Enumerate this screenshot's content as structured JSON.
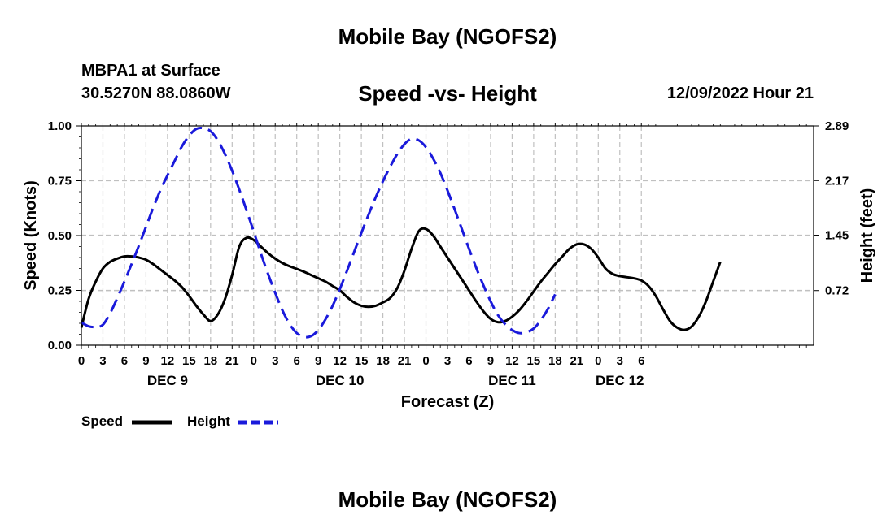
{
  "header": {
    "title": "Mobile Bay (NGOFS2)",
    "station": "MBPA1 at Surface",
    "coordinates": "30.5270N  88.0860W",
    "subtitle": "Speed -vs- Height",
    "date": "12/09/2022 Hour 21"
  },
  "footer": {
    "title": "Mobile Bay (NGOFS2)"
  },
  "chart_data": {
    "type": "line",
    "xlabel": "Forecast (Z)",
    "ylabel": "Speed (Knots)",
    "y2label": "Height (feet)",
    "x_range_hours": [
      0,
      102
    ],
    "ylim": [
      0,
      1.0
    ],
    "y2lim": [
      0,
      2.89
    ],
    "grid": true,
    "x_ticks": [
      {
        "h": 0,
        "label": "0"
      },
      {
        "h": 3,
        "label": "3"
      },
      {
        "h": 6,
        "label": "6"
      },
      {
        "h": 9,
        "label": "9"
      },
      {
        "h": 12,
        "label": "12"
      },
      {
        "h": 15,
        "label": "15"
      },
      {
        "h": 18,
        "label": "18"
      },
      {
        "h": 21,
        "label": "21"
      },
      {
        "h": 24,
        "label": "0"
      },
      {
        "h": 27,
        "label": "3"
      },
      {
        "h": 30,
        "label": "6"
      },
      {
        "h": 33,
        "label": "9"
      },
      {
        "h": 36,
        "label": "12"
      },
      {
        "h": 39,
        "label": "15"
      },
      {
        "h": 42,
        "label": "18"
      },
      {
        "h": 45,
        "label": "21"
      },
      {
        "h": 48,
        "label": "0"
      },
      {
        "h": 51,
        "label": "3"
      },
      {
        "h": 54,
        "label": "6"
      },
      {
        "h": 57,
        "label": "9"
      },
      {
        "h": 60,
        "label": "12"
      },
      {
        "h": 63,
        "label": "15"
      },
      {
        "h": 66,
        "label": "18"
      },
      {
        "h": 69,
        "label": "21"
      },
      {
        "h": 72,
        "label": "0"
      },
      {
        "h": 75,
        "label": "3"
      },
      {
        "h": 78,
        "label": "6"
      }
    ],
    "y_ticks": [
      {
        "v": 0.0,
        "label": "0.00"
      },
      {
        "v": 0.25,
        "label": "0.25"
      },
      {
        "v": 0.5,
        "label": "0.50"
      },
      {
        "v": 0.75,
        "label": "0.75"
      },
      {
        "v": 1.0,
        "label": "1.00"
      }
    ],
    "y2_ticks": [
      {
        "v": 0.72,
        "label": "0.72"
      },
      {
        "v": 1.45,
        "label": "1.45"
      },
      {
        "v": 2.17,
        "label": "2.17"
      },
      {
        "v": 2.89,
        "label": "2.89"
      }
    ],
    "day_labels": [
      {
        "h": 12,
        "label": "DEC 9"
      },
      {
        "h": 36,
        "label": "DEC 10"
      },
      {
        "h": 60,
        "label": "DEC 11"
      },
      {
        "h": 75,
        "label": "DEC 12"
      }
    ],
    "series": [
      {
        "name": "Speed",
        "axis": "left",
        "color": "#000000",
        "dash": "solid",
        "points": [
          [
            0,
            0.08
          ],
          [
            1,
            0.21
          ],
          [
            2,
            0.29
          ],
          [
            3,
            0.35
          ],
          [
            4,
            0.38
          ],
          [
            5,
            0.395
          ],
          [
            6,
            0.405
          ],
          [
            7,
            0.405
          ],
          [
            8,
            0.4
          ],
          [
            9,
            0.39
          ],
          [
            10,
            0.37
          ],
          [
            11,
            0.345
          ],
          [
            12,
            0.32
          ],
          [
            13,
            0.295
          ],
          [
            14,
            0.265
          ],
          [
            15,
            0.225
          ],
          [
            16,
            0.18
          ],
          [
            17,
            0.14
          ],
          [
            18,
            0.11
          ],
          [
            19,
            0.14
          ],
          [
            20,
            0.21
          ],
          [
            21,
            0.32
          ],
          [
            22,
            0.45
          ],
          [
            23,
            0.49
          ],
          [
            24,
            0.48
          ],
          [
            25,
            0.45
          ],
          [
            26,
            0.42
          ],
          [
            27,
            0.395
          ],
          [
            28,
            0.375
          ],
          [
            29,
            0.36
          ],
          [
            30,
            0.348
          ],
          [
            31,
            0.335
          ],
          [
            32,
            0.32
          ],
          [
            33,
            0.305
          ],
          [
            34,
            0.29
          ],
          [
            35,
            0.27
          ],
          [
            36,
            0.25
          ],
          [
            37,
            0.22
          ],
          [
            38,
            0.195
          ],
          [
            39,
            0.18
          ],
          [
            40,
            0.175
          ],
          [
            41,
            0.18
          ],
          [
            42,
            0.195
          ],
          [
            43,
            0.215
          ],
          [
            44,
            0.26
          ],
          [
            45,
            0.34
          ],
          [
            46,
            0.44
          ],
          [
            47,
            0.52
          ],
          [
            48,
            0.53
          ],
          [
            49,
            0.5
          ],
          [
            50,
            0.45
          ],
          [
            51,
            0.4
          ],
          [
            52,
            0.35
          ],
          [
            53,
            0.3
          ],
          [
            54,
            0.25
          ],
          [
            55,
            0.2
          ],
          [
            56,
            0.155
          ],
          [
            57,
            0.12
          ],
          [
            58,
            0.105
          ],
          [
            59,
            0.11
          ],
          [
            60,
            0.13
          ],
          [
            61,
            0.16
          ],
          [
            62,
            0.2
          ],
          [
            63,
            0.245
          ],
          [
            64,
            0.29
          ],
          [
            65,
            0.33
          ],
          [
            66,
            0.37
          ],
          [
            67,
            0.405
          ],
          [
            68,
            0.44
          ],
          [
            69,
            0.46
          ],
          [
            70,
            0.46
          ],
          [
            71,
            0.44
          ],
          [
            72,
            0.4
          ],
          [
            73,
            0.35
          ],
          [
            74,
            0.325
          ],
          [
            75,
            0.315
          ],
          [
            76,
            0.31
          ],
          [
            77,
            0.305
          ],
          [
            78,
            0.295
          ],
          [
            79,
            0.27
          ],
          [
            80,
            0.225
          ],
          [
            81,
            0.165
          ],
          [
            82,
            0.11
          ],
          [
            83,
            0.08
          ],
          [
            84,
            0.07
          ],
          [
            85,
            0.085
          ],
          [
            86,
            0.13
          ],
          [
            87,
            0.2
          ],
          [
            88,
            0.29
          ],
          [
            89,
            0.38
          ]
        ]
      },
      {
        "name": "Height",
        "axis": "right",
        "color": "#1a1adb",
        "dash": "dashed",
        "points": [
          [
            0,
            0.3
          ],
          [
            1,
            0.25
          ],
          [
            2,
            0.24
          ],
          [
            3,
            0.27
          ],
          [
            4,
            0.42
          ],
          [
            5,
            0.62
          ],
          [
            6,
            0.84
          ],
          [
            7,
            1.07
          ],
          [
            8,
            1.31
          ],
          [
            9,
            1.56
          ],
          [
            10,
            1.81
          ],
          [
            11,
            2.04
          ],
          [
            12,
            2.24
          ],
          [
            13,
            2.43
          ],
          [
            14,
            2.62
          ],
          [
            15,
            2.76
          ],
          [
            16,
            2.85
          ],
          [
            17,
            2.86
          ],
          [
            18,
            2.82
          ],
          [
            19,
            2.7
          ],
          [
            20,
            2.52
          ],
          [
            21,
            2.3
          ],
          [
            22,
            2.05
          ],
          [
            23,
            1.78
          ],
          [
            24,
            1.5
          ],
          [
            25,
            1.21
          ],
          [
            26,
            0.94
          ],
          [
            27,
            0.69
          ],
          [
            28,
            0.46
          ],
          [
            29,
            0.28
          ],
          [
            30,
            0.16
          ],
          [
            31,
            0.11
          ],
          [
            32,
            0.12
          ],
          [
            33,
            0.2
          ],
          [
            34,
            0.34
          ],
          [
            35,
            0.52
          ],
          [
            36,
            0.74
          ],
          [
            37,
            0.98
          ],
          [
            38,
            1.23
          ],
          [
            39,
            1.48
          ],
          [
            40,
            1.72
          ],
          [
            41,
            1.95
          ],
          [
            42,
            2.16
          ],
          [
            43,
            2.35
          ],
          [
            44,
            2.52
          ],
          [
            45,
            2.65
          ],
          [
            46,
            2.72
          ],
          [
            47,
            2.7
          ],
          [
            48,
            2.61
          ],
          [
            49,
            2.46
          ],
          [
            50,
            2.27
          ],
          [
            51,
            2.04
          ],
          [
            52,
            1.79
          ],
          [
            53,
            1.53
          ],
          [
            54,
            1.27
          ],
          [
            55,
            1.02
          ],
          [
            56,
            0.79
          ],
          [
            57,
            0.58
          ],
          [
            58,
            0.4
          ],
          [
            59,
            0.28
          ],
          [
            60,
            0.2
          ],
          [
            61,
            0.16
          ],
          [
            62,
            0.17
          ],
          [
            63,
            0.22
          ],
          [
            64,
            0.33
          ],
          [
            65,
            0.48
          ],
          [
            66,
            0.67
          ]
        ]
      }
    ],
    "legend": [
      {
        "label": "Speed",
        "color": "#000000",
        "dash": "solid"
      },
      {
        "label": "Height",
        "color": "#1a1adb",
        "dash": "dashed"
      }
    ]
  }
}
